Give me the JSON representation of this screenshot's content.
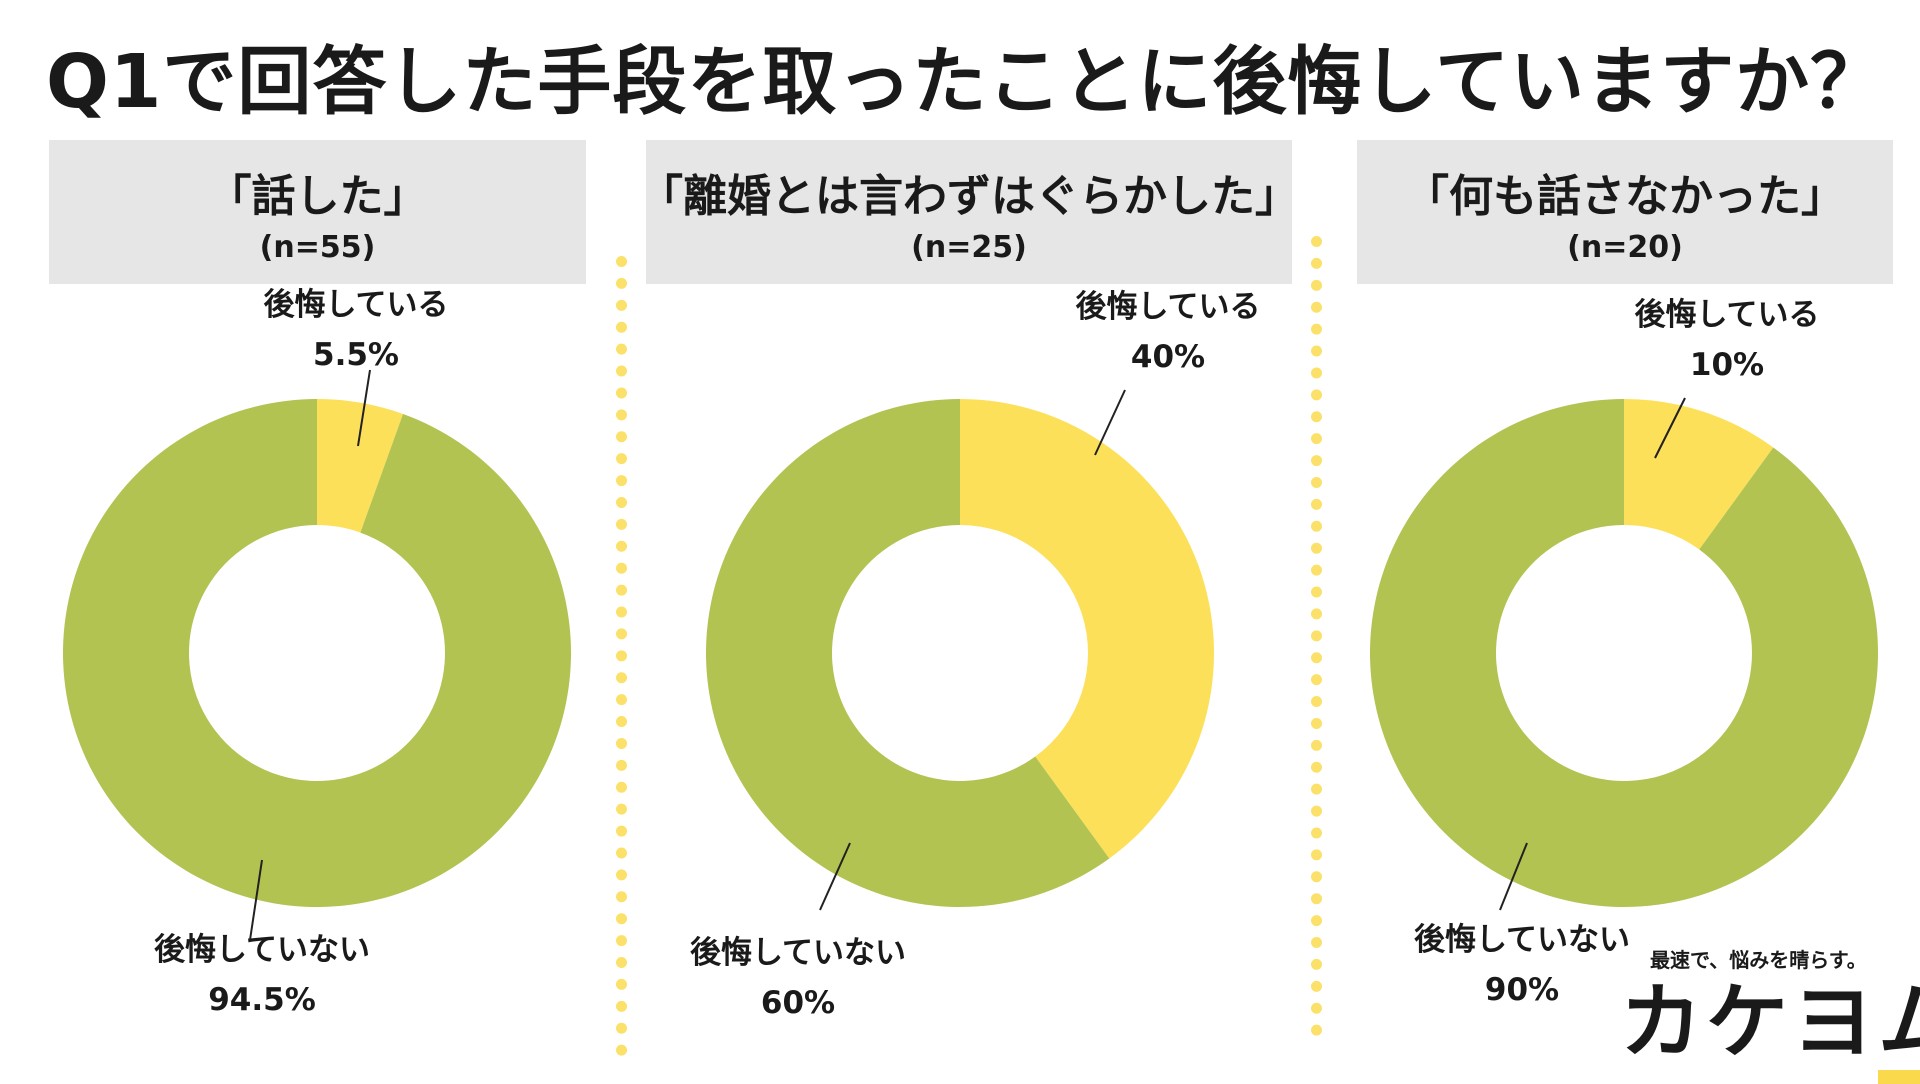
{
  "title": "Q1で回答した手段を取ったことに後悔していますか？",
  "colors": {
    "regret": "#fde05a",
    "no_regret": "#b2c351",
    "header_bg": "#e6e6e6",
    "divider": "#fbe06a"
  },
  "chart_data": [
    {
      "type": "pie",
      "category": "「話した」",
      "n_label": "(n=55)",
      "slices": [
        {
          "label": "後悔している",
          "value": 5.5,
          "value_label": "5.5%",
          "color": "#fde05a"
        },
        {
          "label": "後悔していない",
          "value": 94.5,
          "value_label": "94.5%",
          "color": "#b2c351"
        }
      ]
    },
    {
      "type": "pie",
      "category": "「離婚とは言わずはぐらかした」",
      "n_label": "(n=25)",
      "slices": [
        {
          "label": "後悔している",
          "value": 40,
          "value_label": "40%",
          "color": "#fde05a"
        },
        {
          "label": "後悔していない",
          "value": 60,
          "value_label": "60%",
          "color": "#b2c351"
        }
      ]
    },
    {
      "type": "pie",
      "category": "「何も話さなかった」",
      "n_label": "(n=20)",
      "slices": [
        {
          "label": "後悔している",
          "value": 10,
          "value_label": "10%",
          "color": "#fde05a"
        },
        {
          "label": "後悔していない",
          "value": 90,
          "value_label": "90%",
          "color": "#b2c351"
        }
      ]
    }
  ],
  "brand": {
    "tagline": "最速で、悩みを晴らす。",
    "logo_main": "カケヨ",
    "logo_last": "ム"
  }
}
